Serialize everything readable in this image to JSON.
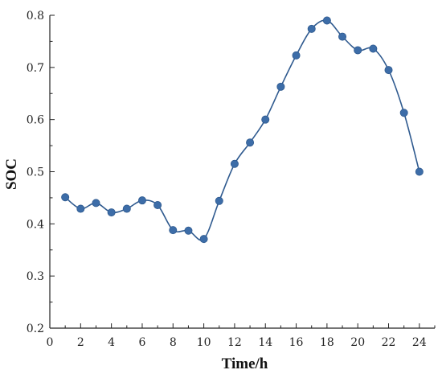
{
  "chart_data": {
    "type": "line",
    "title": "",
    "xlabel": "Time/h",
    "ylabel": "SOC",
    "xlim": [
      0,
      25
    ],
    "ylim": [
      0.2,
      0.8
    ],
    "x_ticks": [
      0,
      2,
      4,
      6,
      8,
      10,
      12,
      14,
      16,
      18,
      20,
      22,
      24
    ],
    "x_tick_labels": [
      "0",
      "2",
      "4",
      "6",
      "8",
      "10",
      "12",
      "14",
      "16",
      "18",
      "20",
      "22",
      "24"
    ],
    "y_ticks": [
      0.2,
      0.3,
      0.4,
      0.5,
      0.6,
      0.7,
      0.8
    ],
    "y_tick_labels": [
      "0.2",
      "0.3",
      "0.4",
      "0.5",
      "0.6",
      "0.7",
      "0.8"
    ],
    "grid": false,
    "line_color": "#2F5A8F",
    "marker_color": "#3D6DA8",
    "series": [
      {
        "x": [
          1,
          2,
          3,
          4,
          5,
          6,
          7,
          8,
          9,
          10,
          11,
          12,
          13,
          14,
          15,
          16,
          17,
          18,
          19,
          20,
          21,
          22,
          23,
          24
        ],
        "values": [
          0.451,
          0.429,
          0.44,
          0.422,
          0.429,
          0.445,
          0.436,
          0.388,
          0.387,
          0.371,
          0.444,
          0.515,
          0.556,
          0.6,
          0.663,
          0.723,
          0.774,
          0.79,
          0.759,
          0.733,
          0.736,
          0.695,
          0.613,
          0.5
        ]
      }
    ]
  }
}
